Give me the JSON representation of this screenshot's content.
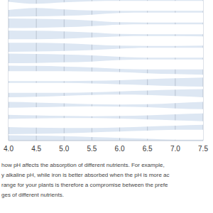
{
  "chart_data": {
    "type": "area",
    "x": [
      4,
      4.5,
      5,
      5.5,
      6,
      6.5,
      7,
      7.5
    ],
    "xlim": [
      4,
      7.5
    ],
    "xticks": [
      {
        "value": 4,
        "label": "4.0"
      },
      4.5,
      {
        "value": 5,
        "label": "5.0"
      },
      5.5,
      {
        "value": 6,
        "label": "6.0"
      },
      6.5,
      {
        "value": 7,
        "label": "7.0"
      },
      7.5
    ],
    "ylim": [
      0,
      12
    ],
    "tick_labels": "x",
    "grid": true,
    "color": "#ffffff",
    "series": [
      {
        "values": [
          0.7,
          0.35,
          0.6,
          0.8,
          0.85,
          0.85,
          0.85,
          0.85
        ]
      },
      {
        "values": [
          0.15,
          0.2,
          0.3,
          0.5,
          0.8,
          0.85,
          0.85,
          0.85
        ]
      },
      {
        "values": [
          0.2,
          0.25,
          0.35,
          0.55,
          0.8,
          0.85,
          0.85,
          0.85
        ]
      },
      {
        "values": [
          0.3,
          0.3,
          0.4,
          0.6,
          0.8,
          0.85,
          0.85,
          0.8
        ]
      },
      {
        "values": [
          0.15,
          0.2,
          0.3,
          0.45,
          0.7,
          0.85,
          0.85,
          0.85
        ]
      },
      {
        "values": [
          0.2,
          0.25,
          0.35,
          0.5,
          0.75,
          0.85,
          0.85,
          0.85
        ]
      },
      {
        "values": [
          0.85,
          0.85,
          0.85,
          0.8,
          0.7,
          0.5,
          0.35,
          0.25
        ]
      },
      {
        "values": [
          0.85,
          0.85,
          0.85,
          0.75,
          0.6,
          0.45,
          0.3,
          0.2
        ]
      },
      {
        "values": [
          0.4,
          0.5,
          0.65,
          0.8,
          0.85,
          0.8,
          0.6,
          0.4
        ]
      },
      {
        "values": [
          0.6,
          0.7,
          0.8,
          0.85,
          0.8,
          0.7,
          0.5,
          0.35
        ]
      },
      {
        "values": [
          0.7,
          0.8,
          0.85,
          0.85,
          0.75,
          0.6,
          0.45,
          0.3
        ]
      },
      {
        "values": [
          0.1,
          0.15,
          0.25,
          0.4,
          0.55,
          0.7,
          0.85,
          0.85
        ]
      }
    ],
    "annotations": [
      "how pH affects the absorption of different nutrients. For example,",
      "y alkaline pH, while iron is better absorbed when the pH is more ac",
      "range for your plants is therefore a compromise between the prefe",
      "ges of different nutrients."
    ]
  }
}
